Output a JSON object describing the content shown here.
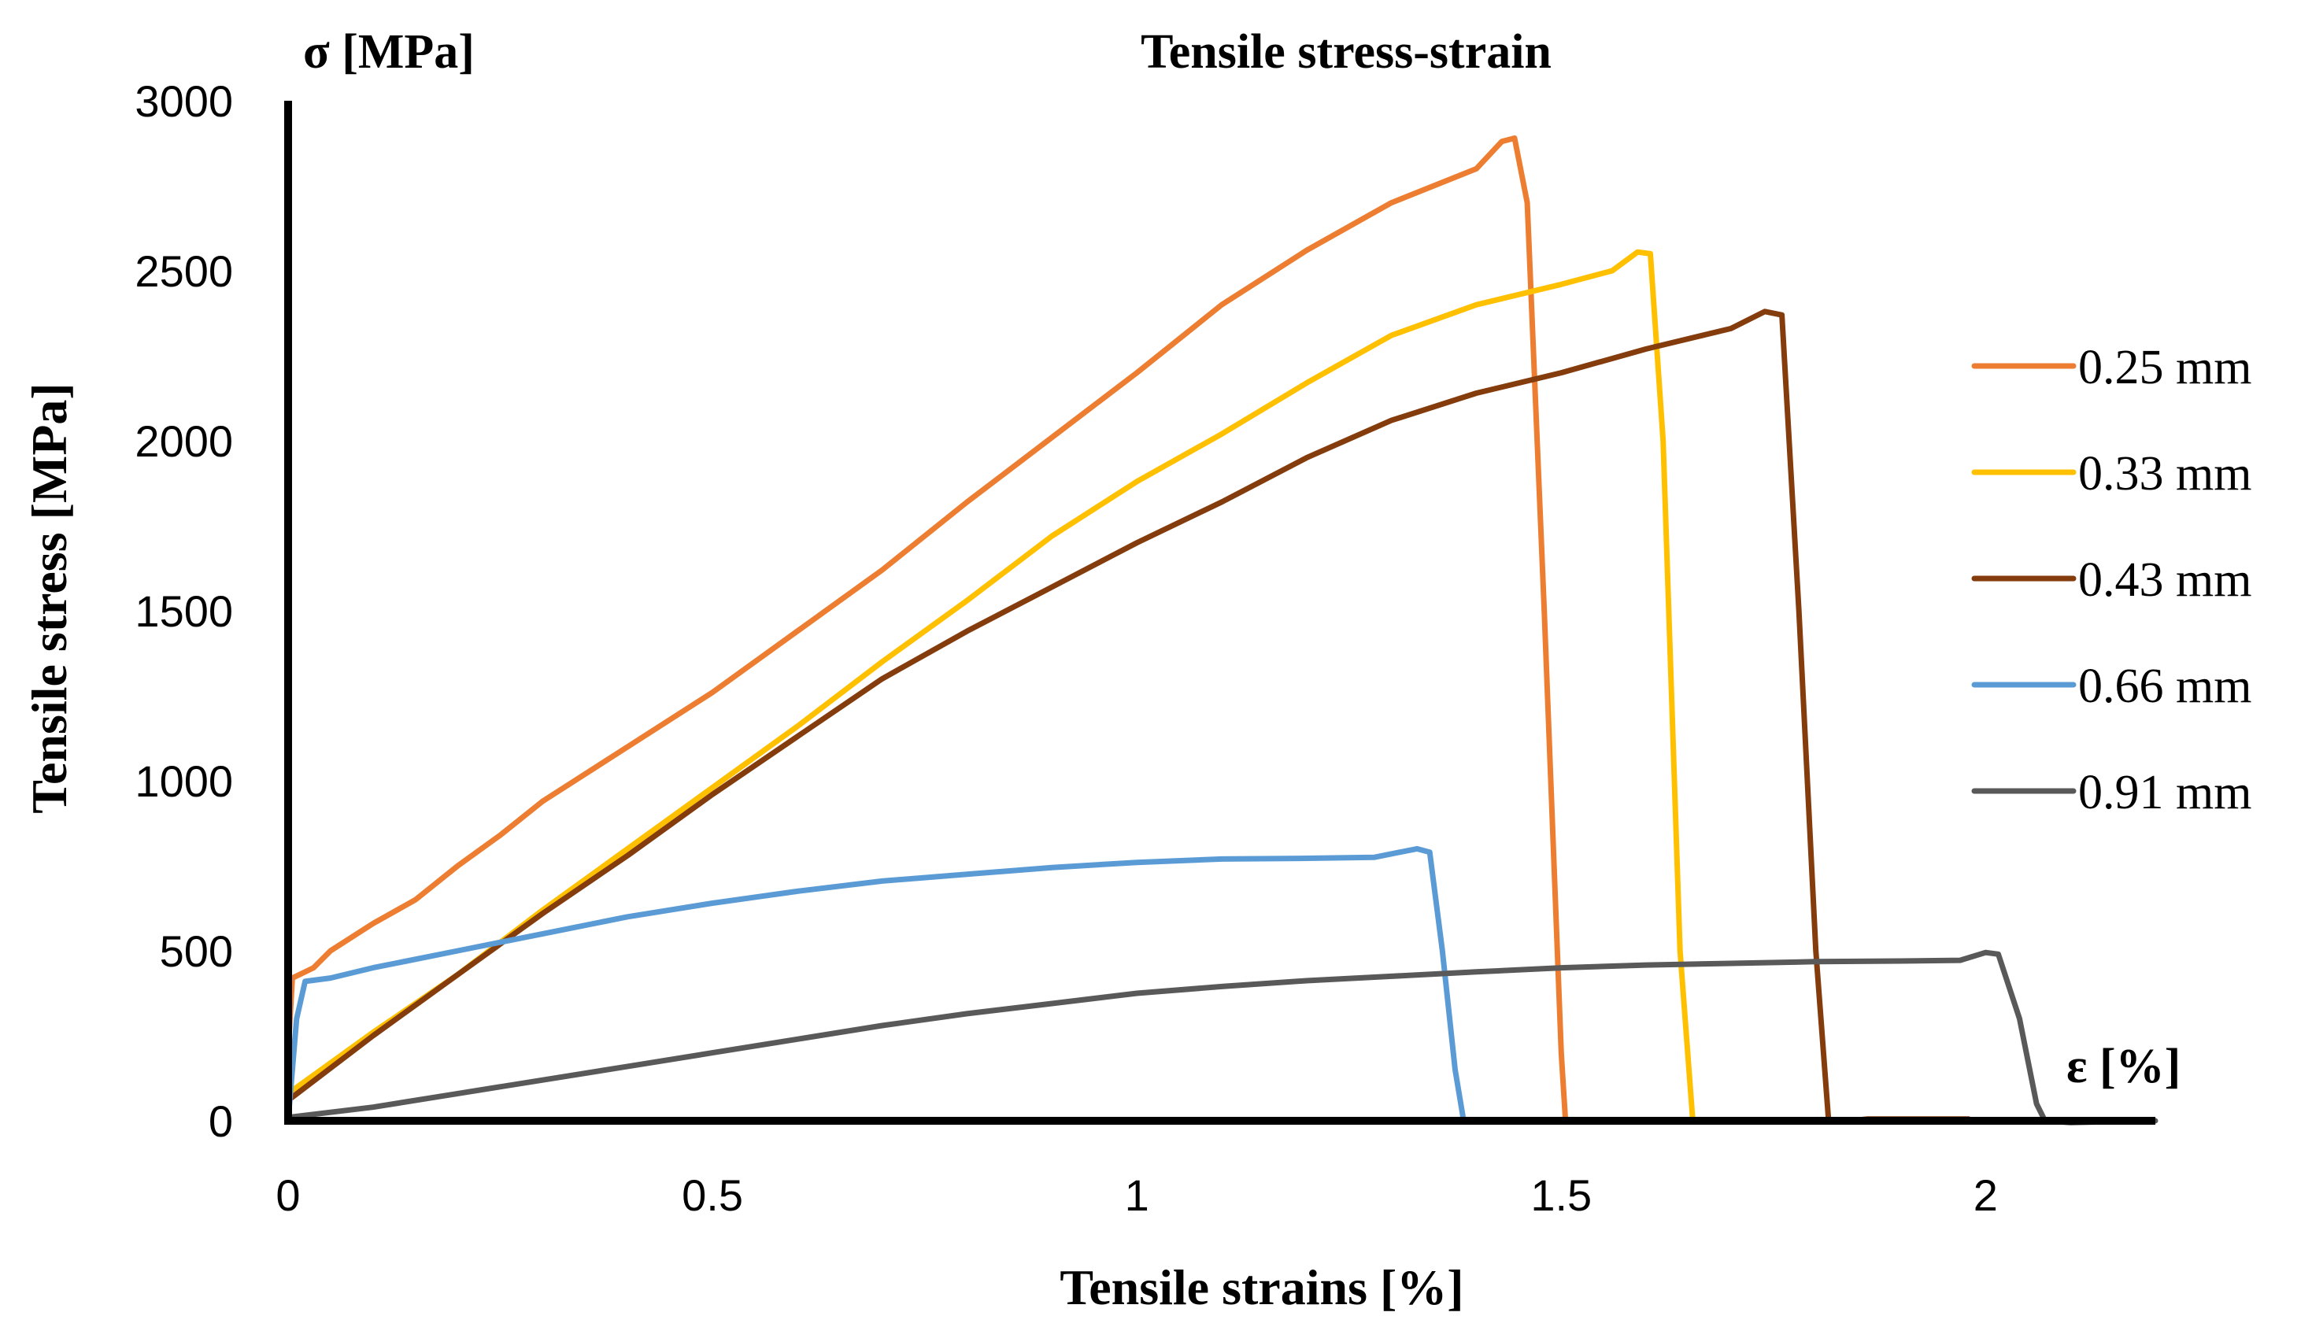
{
  "chart_data": {
    "type": "line",
    "title": "Tensile stress-strain",
    "xlabel": "Tensile strains [%]",
    "ylabel": "Tensile stress [MPa]",
    "y_axis_marker": "σ [MPa]",
    "x_axis_marker": "ε [%]",
    "xlim": [
      0,
      2.2
    ],
    "ylim": [
      0,
      3000
    ],
    "x_ticks": [
      0,
      0.5,
      1,
      1.5,
      2
    ],
    "x_tick_labels": [
      "0",
      "0.5",
      "1",
      "1.5",
      "2"
    ],
    "y_ticks": [
      0,
      500,
      1000,
      1500,
      2000,
      2500,
      3000
    ],
    "y_tick_labels": [
      "0",
      "500",
      "1000",
      "1500",
      "2000",
      "2500",
      "3000"
    ],
    "grid": false,
    "legend_position": "right",
    "series": [
      {
        "name": "0.25 mm",
        "color": "#ED7D31",
        "points": [
          [
            0,
            200
          ],
          [
            0.005,
            420
          ],
          [
            0.03,
            450
          ],
          [
            0.05,
            500
          ],
          [
            0.1,
            580
          ],
          [
            0.15,
            650
          ],
          [
            0.2,
            750
          ],
          [
            0.25,
            840
          ],
          [
            0.3,
            940
          ],
          [
            0.4,
            1100
          ],
          [
            0.5,
            1260
          ],
          [
            0.6,
            1440
          ],
          [
            0.7,
            1620
          ],
          [
            0.8,
            1820
          ],
          [
            0.9,
            2010
          ],
          [
            1.0,
            2200
          ],
          [
            1.1,
            2400
          ],
          [
            1.2,
            2560
          ],
          [
            1.3,
            2700
          ],
          [
            1.4,
            2800
          ],
          [
            1.43,
            2880
          ],
          [
            1.445,
            2890
          ],
          [
            1.46,
            2700
          ],
          [
            1.48,
            1500
          ],
          [
            1.5,
            200
          ],
          [
            1.505,
            0
          ]
        ]
      },
      {
        "name": "0.33 mm",
        "color": "#FFC000",
        "points": [
          [
            0,
            80
          ],
          [
            0.1,
            260
          ],
          [
            0.2,
            430
          ],
          [
            0.3,
            620
          ],
          [
            0.4,
            800
          ],
          [
            0.5,
            980
          ],
          [
            0.6,
            1160
          ],
          [
            0.7,
            1350
          ],
          [
            0.8,
            1530
          ],
          [
            0.9,
            1720
          ],
          [
            1.0,
            1880
          ],
          [
            1.1,
            2020
          ],
          [
            1.2,
            2170
          ],
          [
            1.3,
            2310
          ],
          [
            1.4,
            2400
          ],
          [
            1.5,
            2460
          ],
          [
            1.56,
            2500
          ],
          [
            1.59,
            2555
          ],
          [
            1.605,
            2550
          ],
          [
            1.62,
            2000
          ],
          [
            1.64,
            500
          ],
          [
            1.655,
            0
          ]
        ]
      },
      {
        "name": "0.43 mm",
        "color": "#843C0C",
        "points": [
          [
            0,
            60
          ],
          [
            0.1,
            250
          ],
          [
            0.2,
            430
          ],
          [
            0.3,
            610
          ],
          [
            0.4,
            780
          ],
          [
            0.5,
            960
          ],
          [
            0.6,
            1130
          ],
          [
            0.7,
            1300
          ],
          [
            0.8,
            1440
          ],
          [
            0.9,
            1570
          ],
          [
            1.0,
            1700
          ],
          [
            1.1,
            1820
          ],
          [
            1.2,
            1950
          ],
          [
            1.3,
            2060
          ],
          [
            1.4,
            2140
          ],
          [
            1.5,
            2200
          ],
          [
            1.6,
            2270
          ],
          [
            1.7,
            2330
          ],
          [
            1.74,
            2380
          ],
          [
            1.76,
            2370
          ],
          [
            1.78,
            1500
          ],
          [
            1.8,
            500
          ],
          [
            1.815,
            0
          ],
          [
            1.84,
            0
          ],
          [
            1.86,
            5
          ],
          [
            1.98,
            5
          ]
        ]
      },
      {
        "name": "0.66 mm",
        "color": "#5B9BD5",
        "points": [
          [
            0,
            0
          ],
          [
            0.01,
            300
          ],
          [
            0.02,
            410
          ],
          [
            0.05,
            420
          ],
          [
            0.1,
            450
          ],
          [
            0.2,
            500
          ],
          [
            0.3,
            550
          ],
          [
            0.4,
            600
          ],
          [
            0.5,
            640
          ],
          [
            0.6,
            675
          ],
          [
            0.7,
            705
          ],
          [
            0.8,
            725
          ],
          [
            0.9,
            745
          ],
          [
            1.0,
            760
          ],
          [
            1.1,
            770
          ],
          [
            1.2,
            772
          ],
          [
            1.28,
            775
          ],
          [
            1.31,
            790
          ],
          [
            1.33,
            800
          ],
          [
            1.345,
            790
          ],
          [
            1.36,
            500
          ],
          [
            1.375,
            150
          ],
          [
            1.385,
            0
          ]
        ]
      },
      {
        "name": "0.91 mm",
        "color": "#595959",
        "points": [
          [
            0,
            10
          ],
          [
            0.1,
            40
          ],
          [
            0.2,
            80
          ],
          [
            0.3,
            120
          ],
          [
            0.4,
            160
          ],
          [
            0.5,
            200
          ],
          [
            0.6,
            240
          ],
          [
            0.7,
            280
          ],
          [
            0.8,
            315
          ],
          [
            0.9,
            345
          ],
          [
            1.0,
            375
          ],
          [
            1.1,
            395
          ],
          [
            1.2,
            412
          ],
          [
            1.3,
            425
          ],
          [
            1.4,
            438
          ],
          [
            1.5,
            450
          ],
          [
            1.6,
            458
          ],
          [
            1.7,
            463
          ],
          [
            1.8,
            468
          ],
          [
            1.9,
            470
          ],
          [
            1.97,
            472
          ],
          [
            2.0,
            495
          ],
          [
            2.015,
            490
          ],
          [
            2.04,
            300
          ],
          [
            2.06,
            50
          ],
          [
            2.07,
            0
          ],
          [
            2.1,
            -5
          ],
          [
            2.2,
            0
          ]
        ]
      }
    ]
  }
}
